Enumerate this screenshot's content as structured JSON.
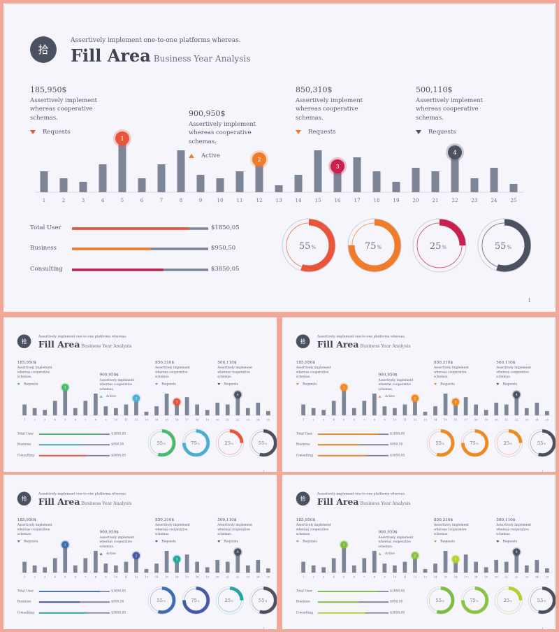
{
  "slide_text": {
    "badge": "拾",
    "subtitle_top": "Assertively implement one-to-one platforms whereas.",
    "title": "Fill Area",
    "title_sub": "Business Year Analysis",
    "callouts": [
      {
        "value": "185,950$",
        "desc": "Assertively implement whereas cooperative schemas.",
        "legend": "Requests",
        "dir": "down"
      },
      {
        "value": "900,950$",
        "desc": "Assertively implement whereas cooperative schemas.",
        "legend": "Active",
        "dir": "up"
      },
      {
        "value": "850,310$",
        "desc": "Assertively implement whereas cooperative schemas.",
        "legend": "Requests",
        "dir": "down"
      },
      {
        "value": "500,110$",
        "desc": "Assertively implement whereas cooperative schemas.",
        "legend": "Requests",
        "dir": "down"
      }
    ],
    "rows": [
      {
        "label": "Total User",
        "value": "$1850,05",
        "fill": 0.86
      },
      {
        "label": "Business",
        "value": "$950,50",
        "fill": 0.58
      },
      {
        "label": "Consulting",
        "value": "$3850,05",
        "fill": 0.67
      }
    ],
    "page": "1"
  },
  "chart_data": {
    "type": "bar",
    "categories": [
      "1",
      "2",
      "3",
      "4",
      "5",
      "6",
      "7",
      "8",
      "9",
      "10",
      "11",
      "12",
      "13",
      "14",
      "15",
      "16",
      "17",
      "18",
      "19",
      "20",
      "21",
      "22",
      "23",
      "24",
      "25"
    ],
    "values": [
      30,
      20,
      15,
      40,
      75,
      20,
      40,
      60,
      25,
      20,
      30,
      45,
      10,
      25,
      60,
      35,
      50,
      30,
      15,
      35,
      30,
      55,
      20,
      35,
      12
    ],
    "markers": [
      {
        "category": "5",
        "label": "1"
      },
      {
        "category": "12",
        "label": "2"
      },
      {
        "category": "16",
        "label": "3"
      },
      {
        "category": "22",
        "label": "4"
      }
    ],
    "ylim": [
      0,
      100
    ]
  },
  "donuts": [
    {
      "label": "55",
      "unit": "%",
      "value": 0.55
    },
    {
      "label": "75",
      "unit": "%",
      "value": 0.75
    },
    {
      "label": "25",
      "unit": "%",
      "value": 0.25
    },
    {
      "label": "55",
      "unit": "%",
      "value": 0.55
    }
  ],
  "themes": [
    {
      "name": "main",
      "c": [
        "#e8553a",
        "#f07c2a",
        "#c8214f",
        "#4b5160"
      ],
      "bars": [
        "#e8553a",
        "#f07c2a",
        "#c8214f"
      ]
    },
    {
      "name": "green-teal",
      "c": [
        "#4cba6b",
        "#49aed0",
        "#e8553a",
        "#4b5160"
      ],
      "bars": [
        "#4cba6b",
        "#49aed0",
        "#e8553a"
      ]
    },
    {
      "name": "orange",
      "c": [
        "#f08a1e",
        "#f08a1e",
        "#f08a1e",
        "#4b5160"
      ],
      "bars": [
        "#f08a1e",
        "#f08a1e",
        "#f08a1e"
      ]
    },
    {
      "name": "blue-teal",
      "c": [
        "#3f6db3",
        "#4758a6",
        "#1fa7a0",
        "#4b5160"
      ],
      "bars": [
        "#3f6db3",
        "#4758a6",
        "#1fa7a0"
      ]
    },
    {
      "name": "green",
      "c": [
        "#7bbd3c",
        "#8ac43f",
        "#b6cf2c",
        "#4b5160"
      ],
      "bars": [
        "#7bbd3c",
        "#8ac43f",
        "#b6cf2c"
      ]
    }
  ],
  "colors": {
    "bar": "#7e8597",
    "track": "#7e8597",
    "ring_outline": "#c9ccd6"
  }
}
